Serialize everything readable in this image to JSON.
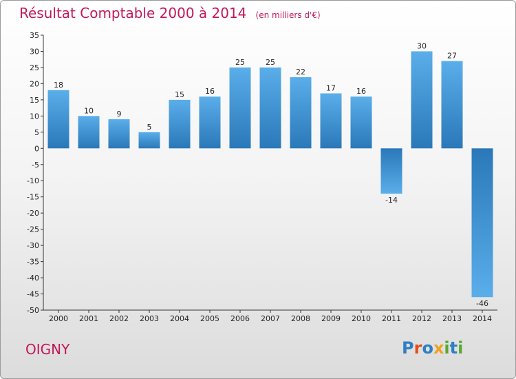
{
  "header": {
    "title": "Résultat Comptable 2000 à 2014",
    "subtitle": "(en milliers d'€)"
  },
  "footer": {
    "commune": "OIGNY",
    "logo_text": "Proxiti"
  },
  "colors": {
    "title": "#c2185b",
    "bar_light": "#5aaeea",
    "bar_dark": "#2a78b8"
  },
  "chart_data": {
    "type": "bar",
    "title": "Résultat Comptable 2000 à 2014",
    "subtitle": "(en milliers d'€)",
    "xlabel": "",
    "ylabel": "",
    "categories": [
      "2000",
      "2001",
      "2002",
      "2003",
      "2004",
      "2005",
      "2006",
      "2007",
      "2008",
      "2009",
      "2010",
      "2011",
      "2012",
      "2013",
      "2014"
    ],
    "values": [
      18,
      10,
      9,
      5,
      15,
      16,
      25,
      25,
      22,
      17,
      16,
      -14,
      30,
      27,
      -46
    ],
    "ylim": [
      -50,
      35
    ],
    "yticks": [
      35,
      30,
      25,
      20,
      15,
      10,
      5,
      0,
      -5,
      -10,
      -15,
      -20,
      -25,
      -30,
      -35,
      -40,
      -45,
      -50
    ],
    "grid": false,
    "legend": "none"
  }
}
